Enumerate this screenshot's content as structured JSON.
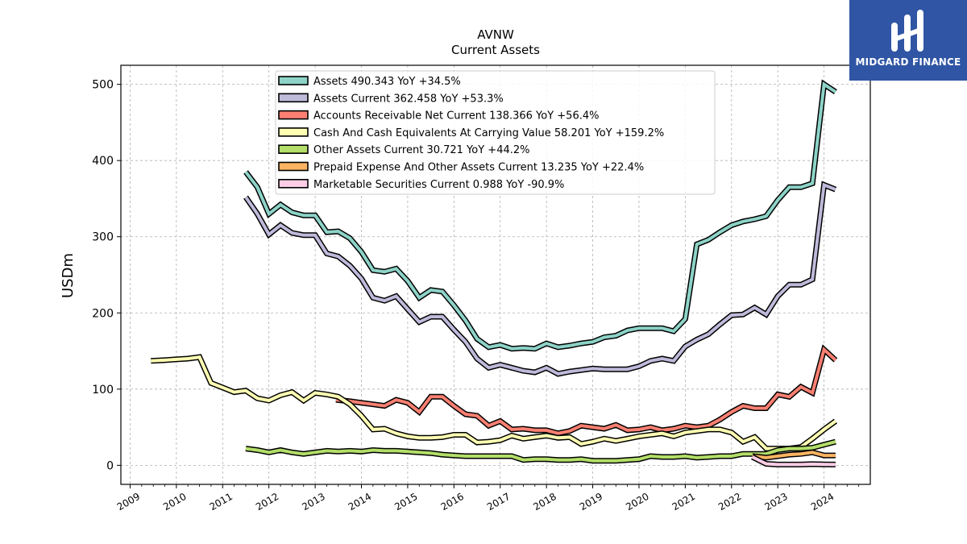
{
  "chart_data": {
    "type": "line",
    "title": "AVNW",
    "subtitle": "Current  Assets",
    "ylabel": "USDm",
    "xlabel": "",
    "xlim": [
      2008.8,
      2025.0
    ],
    "ylim": [
      -25,
      525
    ],
    "yticks": [
      0,
      100,
      200,
      300,
      400,
      500
    ],
    "xticks": [
      "2009",
      "2010",
      "2011",
      "2012",
      "2013",
      "2014",
      "2015",
      "2016",
      "2017",
      "2018",
      "2019",
      "2020",
      "2021",
      "2022",
      "2023",
      "2024"
    ],
    "grid": true,
    "legend_position": "top-center",
    "series": [
      {
        "name": "Assets  490.343 YoY +34.5%",
        "color": "#8dd3c7",
        "x": [
          2011.5,
          2011.75,
          2012.0,
          2012.25,
          2012.5,
          2012.75,
          2013.0,
          2013.25,
          2013.5,
          2013.75,
          2014.0,
          2014.25,
          2014.5,
          2014.75,
          2015.0,
          2015.25,
          2015.5,
          2015.75,
          2016.0,
          2016.25,
          2016.5,
          2016.75,
          2017.0,
          2017.25,
          2017.5,
          2017.75,
          2018.0,
          2018.25,
          2018.5,
          2018.75,
          2019.0,
          2019.25,
          2019.5,
          2019.75,
          2020.0,
          2020.25,
          2020.5,
          2020.75,
          2021.0,
          2021.25,
          2021.5,
          2021.75,
          2022.0,
          2022.25,
          2022.5,
          2022.75,
          2023.0,
          2023.25,
          2023.5,
          2023.75,
          2024.0,
          2024.25
        ],
        "values": [
          385,
          365,
          330,
          342,
          332,
          328,
          328,
          306,
          307,
          298,
          280,
          256,
          254,
          258,
          242,
          220,
          230,
          228,
          210,
          190,
          166,
          155,
          158,
          153,
          154,
          153,
          160,
          155,
          157,
          160,
          162,
          168,
          170,
          177,
          180,
          180,
          180,
          176,
          192,
          290,
          296,
          306,
          315,
          320,
          323,
          327,
          348,
          365,
          365,
          370,
          500,
          490
        ]
      },
      {
        "name": "Assets Current  362.458 YoY +53.3%",
        "color": "#bebada",
        "x": [
          2011.5,
          2011.75,
          2012.0,
          2012.25,
          2012.5,
          2012.75,
          2013.0,
          2013.25,
          2013.5,
          2013.75,
          2014.0,
          2014.25,
          2014.5,
          2014.75,
          2015.0,
          2015.25,
          2015.5,
          2015.75,
          2016.0,
          2016.25,
          2016.5,
          2016.75,
          2017.0,
          2017.25,
          2017.5,
          2017.75,
          2018.0,
          2018.25,
          2018.5,
          2018.75,
          2019.0,
          2019.25,
          2019.5,
          2019.75,
          2020.0,
          2020.25,
          2020.5,
          2020.75,
          2021.0,
          2021.25,
          2021.5,
          2021.75,
          2022.0,
          2022.25,
          2022.5,
          2022.75,
          2023.0,
          2023.25,
          2023.5,
          2023.75,
          2024.0,
          2024.25
        ],
        "values": [
          352,
          330,
          303,
          315,
          305,
          302,
          302,
          278,
          274,
          262,
          245,
          220,
          216,
          222,
          205,
          188,
          195,
          195,
          178,
          162,
          140,
          128,
          132,
          128,
          124,
          122,
          128,
          120,
          123,
          125,
          127,
          126,
          126,
          126,
          130,
          137,
          140,
          137,
          156,
          165,
          172,
          185,
          197,
          198,
          207,
          198,
          222,
          237,
          237,
          244,
          368,
          362
        ]
      },
      {
        "name": "Accounts Receivable Net Current  138.366 YoY +56.4%",
        "color": "#fb8072",
        "x": [
          2013.45,
          2013.75,
          2014.0,
          2014.25,
          2014.5,
          2014.75,
          2015.0,
          2015.25,
          2015.5,
          2015.75,
          2016.0,
          2016.25,
          2016.5,
          2016.75,
          2017.0,
          2017.25,
          2017.5,
          2017.75,
          2018.0,
          2018.25,
          2018.5,
          2018.75,
          2019.0,
          2019.25,
          2019.5,
          2019.75,
          2020.0,
          2020.25,
          2020.5,
          2020.75,
          2021.0,
          2021.25,
          2021.5,
          2021.75,
          2022.0,
          2022.25,
          2022.5,
          2022.75,
          2023.0,
          2023.25,
          2023.5,
          2023.75,
          2024.0,
          2024.25
        ],
        "values": [
          86,
          84,
          82,
          80,
          78,
          86,
          82,
          70,
          90,
          90,
          78,
          67,
          65,
          52,
          58,
          47,
          48,
          46,
          46,
          42,
          45,
          52,
          50,
          48,
          53,
          46,
          47,
          50,
          46,
          48,
          52,
          50,
          52,
          60,
          70,
          78,
          75,
          75,
          93,
          90,
          103,
          95,
          152,
          138
        ]
      },
      {
        "name": "Cash And Cash Equivalents At Carrying Value  58.201 YoY +159.2%",
        "color": "#ffffb3",
        "x": [
          2009.45,
          2009.75,
          2010.0,
          2010.25,
          2010.5,
          2010.75,
          2011.0,
          2011.25,
          2011.5,
          2011.75,
          2012.0,
          2012.25,
          2012.5,
          2012.75,
          2013.0,
          2013.25,
          2013.5,
          2013.75,
          2014.0,
          2014.25,
          2014.5,
          2014.75,
          2015.0,
          2015.25,
          2015.5,
          2015.75,
          2016.0,
          2016.25,
          2016.5,
          2016.75,
          2017.0,
          2017.25,
          2017.5,
          2017.75,
          2018.0,
          2018.25,
          2018.5,
          2018.75,
          2019.0,
          2019.25,
          2019.5,
          2019.75,
          2020.0,
          2020.25,
          2020.5,
          2020.75,
          2021.0,
          2021.25,
          2021.5,
          2021.75,
          2022.0,
          2022.25,
          2022.5,
          2022.75,
          2023.0,
          2023.25,
          2023.5,
          2023.75,
          2024.0,
          2024.25
        ],
        "values": [
          137,
          138,
          139,
          140,
          142,
          108,
          102,
          96,
          98,
          88,
          85,
          92,
          96,
          85,
          95,
          93,
          90,
          80,
          65,
          47,
          48,
          42,
          38,
          36,
          36,
          37,
          40,
          40,
          30,
          31,
          33,
          39,
          35,
          37,
          39,
          36,
          37,
          28,
          31,
          35,
          32,
          35,
          38,
          40,
          42,
          38,
          43,
          45,
          47,
          47,
          43,
          31,
          37,
          22,
          22,
          22,
          24,
          35,
          47,
          58
        ]
      },
      {
        "name": "Other Assets Current  30.721 YoY +44.2%",
        "color": "#b3de69",
        "x": [
          2011.5,
          2011.75,
          2012.0,
          2012.25,
          2012.5,
          2012.75,
          2013.0,
          2013.25,
          2013.5,
          2013.75,
          2014.0,
          2014.25,
          2014.5,
          2014.75,
          2015.0,
          2015.25,
          2015.5,
          2015.75,
          2016.0,
          2016.25,
          2016.5,
          2016.75,
          2017.0,
          2017.25,
          2017.5,
          2017.75,
          2018.0,
          2018.25,
          2018.5,
          2018.75,
          2019.0,
          2019.25,
          2019.5,
          2019.75,
          2020.0,
          2020.25,
          2020.5,
          2020.75,
          2021.0,
          2021.25,
          2021.5,
          2021.75,
          2022.0,
          2022.25,
          2022.5,
          2022.75,
          2023.0,
          2023.25,
          2023.5,
          2023.75,
          2024.0,
          2024.25
        ],
        "values": [
          22,
          20,
          17,
          20,
          17,
          15,
          17,
          19,
          18,
          19,
          18,
          20,
          19,
          19,
          18,
          17,
          16,
          14,
          13,
          12,
          12,
          12,
          12,
          12,
          7,
          8,
          8,
          7,
          7,
          8,
          6,
          6,
          6,
          7,
          8,
          12,
          11,
          11,
          12,
          10,
          11,
          12,
          12,
          15,
          15,
          15,
          20,
          22,
          22,
          23,
          27,
          31
        ]
      },
      {
        "name": "Prepaid Expense And Other Assets Current  13.235 YoY +22.4%",
        "color": "#fdb462",
        "x": [
          2022.45,
          2022.75,
          2023.0,
          2023.25,
          2023.5,
          2023.75,
          2024.0,
          2024.25
        ],
        "values": [
          12,
          10,
          12,
          14,
          15,
          17,
          13,
          13
        ]
      },
      {
        "name": "Marketable Securities Current  0.988 YoY -90.9%",
        "color": "#fccde5",
        "x": [
          2022.45,
          2022.75,
          2023.0,
          2023.25,
          2023.5,
          2023.75,
          2024.0,
          2024.25
        ],
        "values": [
          11,
          2,
          1,
          1,
          1,
          1.5,
          1.2,
          1.0
        ]
      }
    ]
  },
  "logo": {
    "brand": "MIDGARD FINANCE"
  }
}
